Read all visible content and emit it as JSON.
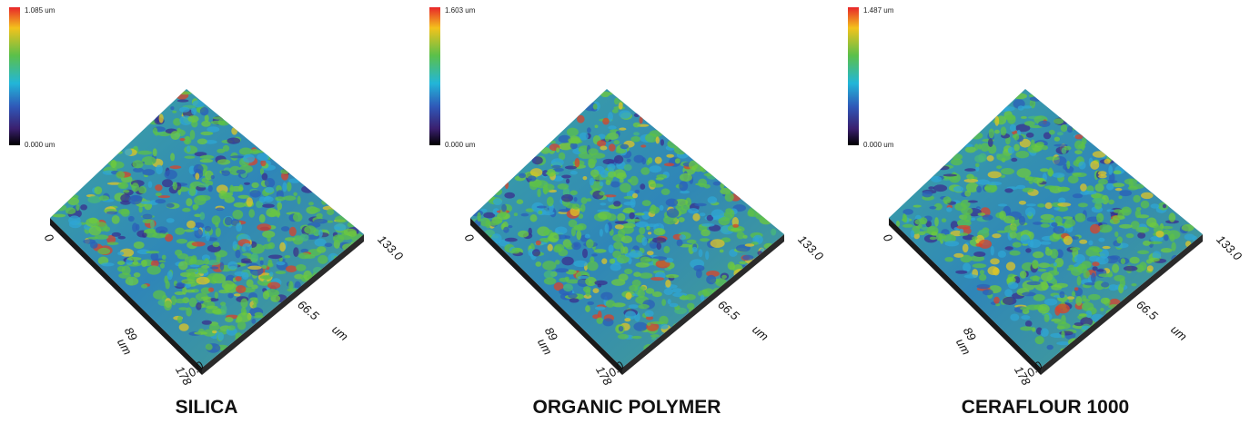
{
  "panels": [
    {
      "caption": "SILICA",
      "scale_max": "1.085 um",
      "scale_min": "0.000 um",
      "axis_left": {
        "start": "0",
        "mid": "89",
        "unit": "um",
        "end": "178"
      },
      "axis_right": {
        "start": "0.0",
        "mid": "66.5",
        "unit": "um",
        "end": "133.0"
      }
    },
    {
      "caption": "ORGANIC POLYMER",
      "scale_max": "1.603 um",
      "scale_min": "0.000 um",
      "axis_left": {
        "start": "0",
        "mid": "89",
        "unit": "um",
        "end": "178"
      },
      "axis_right": {
        "start": "0.0",
        "mid": "66.5",
        "unit": "um",
        "end": "133.0"
      }
    },
    {
      "caption": "CERAFLOUR 1000",
      "scale_max": "1.487 um",
      "scale_min": "0.000 um",
      "axis_left": {
        "start": "0",
        "mid": "89",
        "unit": "um",
        "end": "178"
      },
      "axis_right": {
        "start": "0.0",
        "mid": "66.5",
        "unit": "um",
        "end": "133.0"
      }
    }
  ]
}
